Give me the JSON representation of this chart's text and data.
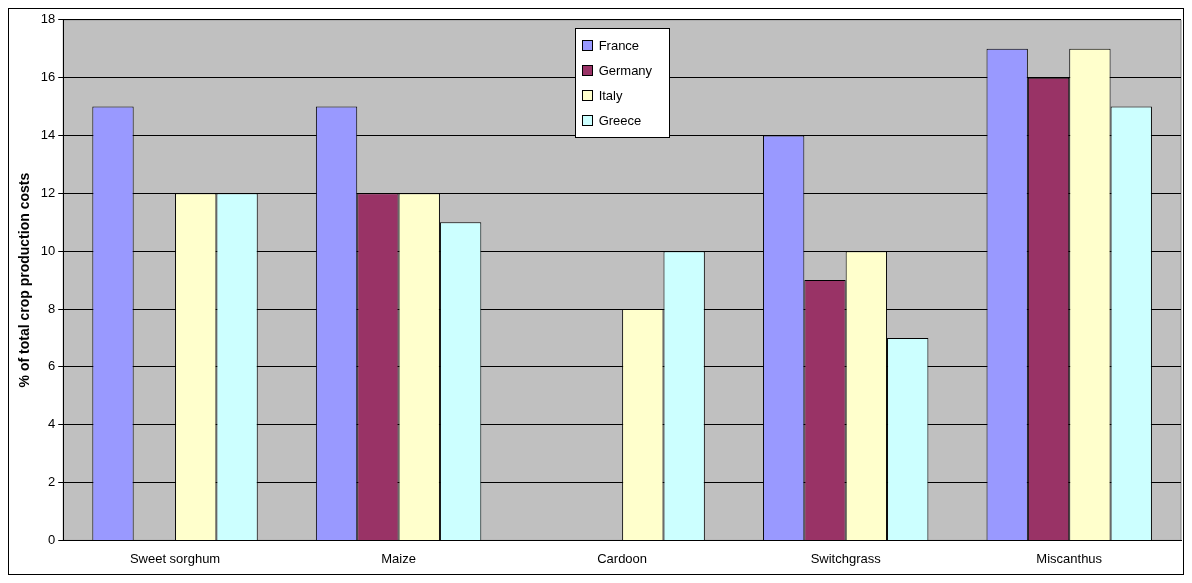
{
  "chart_data": {
    "type": "bar",
    "ylabel": "% of total crop production costs",
    "categories": [
      "Sweet sorghum",
      "Maize",
      "Cardoon",
      "Switchgrass",
      "Miscanthus"
    ],
    "series": [
      {
        "name": "France",
        "color": "#9999ff",
        "values": [
          15,
          15,
          null,
          14,
          17
        ]
      },
      {
        "name": "Germany",
        "color": "#993366",
        "values": [
          null,
          12,
          null,
          9,
          16
        ]
      },
      {
        "name": "Italy",
        "color": "#ffffcc",
        "values": [
          12,
          12,
          8,
          10,
          17
        ]
      },
      {
        "name": "Greece",
        "color": "#ccffff",
        "values": [
          12,
          11,
          10,
          7,
          15
        ]
      }
    ],
    "ylim": [
      0,
      18
    ],
    "yticks": [
      0,
      2,
      4,
      6,
      8,
      10,
      12,
      14,
      16,
      18
    ],
    "grid": "y",
    "legend": "top"
  }
}
